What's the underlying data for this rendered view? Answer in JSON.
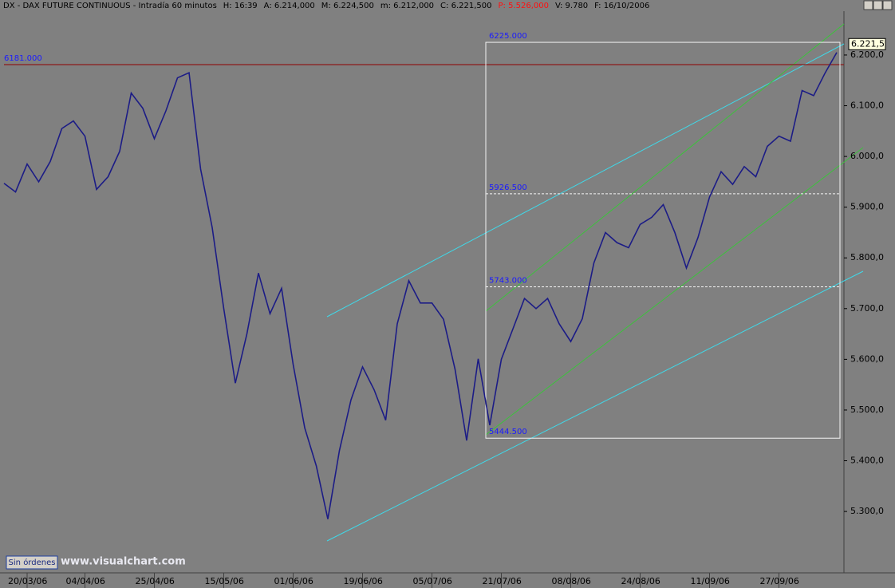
{
  "chart_data": {
    "type": "line",
    "title": "DX - DAX FUTURE CONTINUOUS - Intradía 60 minutos",
    "quote": [
      "H: 16:39",
      "A: 6.214,000",
      "M: 6.224,500",
      "m: 6.212,000",
      "C: 6.221,500",
      "P: 5.526,000",
      "V: 9.780",
      "F: 16/10/2006"
    ],
    "categories": [
      null,
      null,
      "20/03/06",
      null,
      null,
      null,
      null,
      "04/04/06",
      null,
      null,
      null,
      null,
      null,
      "25/04/06",
      null,
      null,
      null,
      null,
      null,
      "15/05/06",
      null,
      null,
      null,
      null,
      null,
      "01/06/06",
      null,
      null,
      null,
      null,
      null,
      "19/06/06",
      null,
      null,
      null,
      null,
      null,
      "05/07/06",
      null,
      null,
      null,
      null,
      null,
      "21/07/06",
      null,
      null,
      null,
      null,
      null,
      "08/08/06",
      null,
      null,
      null,
      null,
      null,
      "24/08/06",
      null,
      null,
      null,
      null,
      null,
      "11/09/06",
      null,
      null,
      null,
      null,
      null,
      "27/09/06",
      null,
      null,
      null,
      null,
      null
    ],
    "series": [
      {
        "name": "DX",
        "color": "#1c1c86",
        "values": [
          5947,
          5930,
          5985,
          5950,
          5990,
          6055,
          6070,
          6040,
          5935,
          5960,
          6010,
          6125,
          6095,
          6035,
          6090,
          6155,
          6165,
          5975,
          5860,
          5700,
          5553,
          5650,
          5770,
          5690,
          5740,
          5590,
          5465,
          5390,
          5285,
          5420,
          5520,
          5585,
          5540,
          5480,
          5670,
          5755,
          5711,
          5711,
          5679,
          5580,
          5440,
          5601,
          5470,
          5600,
          5660,
          5720,
          5700,
          5720,
          5670,
          5635,
          5680,
          5790,
          5850,
          5830,
          5820,
          5866,
          5880,
          5905,
          5850,
          5780,
          5840,
          5920,
          5970,
          5945,
          5980,
          5960,
          6020,
          6040,
          6030,
          6130,
          6120,
          6165,
          6205
        ]
      }
    ],
    "ylim": [
      5179,
      6277
    ],
    "yticks": [
      {
        "value": 5300,
        "label": "5.300,0"
      },
      {
        "value": 5400,
        "label": "5.400,0"
      },
      {
        "value": 5500,
        "label": "5.500,0"
      },
      {
        "value": 5600,
        "label": "5.600,0"
      },
      {
        "value": 5700,
        "label": "5.700,0"
      },
      {
        "value": 5800,
        "label": "5.800,0"
      },
      {
        "value": 5900,
        "label": "5.900,0"
      },
      {
        "value": 6000,
        "label": "6.000,0"
      },
      {
        "value": 6100,
        "label": "6.100,0"
      },
      {
        "value": 6200,
        "label": "6.200,0"
      }
    ],
    "last_price": {
      "value": 6221.5,
      "label": "6.221,5"
    },
    "hline": {
      "value": 6181,
      "label": "6181.000",
      "color": "#8b1a1a"
    },
    "box": {
      "top": {
        "value": 6225,
        "label": "6225.000"
      },
      "bottom": {
        "value": 5444.5,
        "label": "5444.500"
      },
      "color": "#f4f4f4"
    },
    "levels": [
      {
        "value": 5926.5,
        "label": "5926.500"
      },
      {
        "value": 5743,
        "label": "5743.000"
      }
    ],
    "button": "Sin órdenes",
    "watermark": "www.visualchart.com"
  }
}
